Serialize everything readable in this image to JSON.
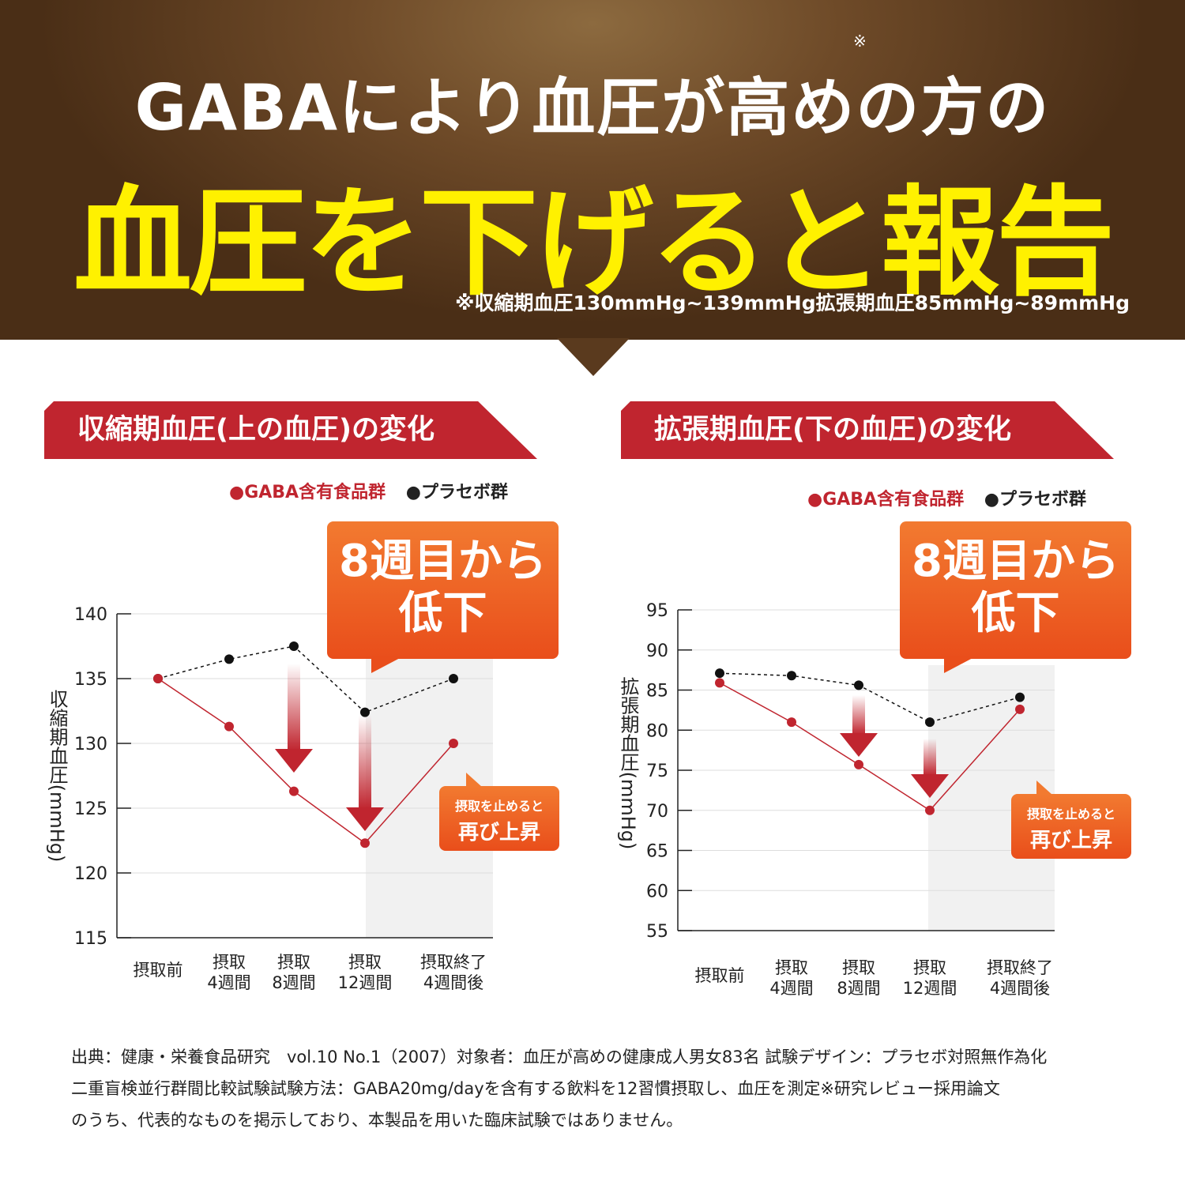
{
  "header": {
    "title_line1": "GABAにより血圧が高めの方の",
    "title_mark": "※",
    "title_line2": "血圧を下げると報告",
    "note": "※収縮期血圧130mmHg~139mmHg拡張期血圧85mmHg~89mmHg"
  },
  "legend": {
    "gaba": "●GABA含有食品群",
    "placebo": "●プラセボ群"
  },
  "badge": {
    "line1": "8週目から",
    "line2": "低下",
    "small_line1": "摂取を止めると",
    "small_line2": "再び上昇"
  },
  "colors": {
    "gaba": "#c0252f",
    "placebo": "#111111",
    "banner": "#c0252f",
    "accent": "#fff100"
  },
  "chart_data": [
    {
      "type": "line",
      "title": "収縮期血圧(上の血圧)の変化",
      "ylabel": "収縮期血圧(mmHg)",
      "ylim": [
        115,
        140
      ],
      "yticks": [
        "140",
        "135",
        "130",
        "125",
        "120",
        "115"
      ],
      "categories": [
        "摂取前",
        "摂取\n4週間",
        "摂取\n8週間",
        "摂取\n12週間",
        "摂取終了\n4週間後"
      ],
      "series": [
        {
          "name": "GABA含有食品群",
          "values": [
            135,
            131.3,
            126.3,
            122.3,
            130
          ]
        },
        {
          "name": "プラセボ群",
          "values": [
            135,
            136.5,
            137.5,
            132.4,
            135
          ]
        }
      ]
    },
    {
      "type": "line",
      "title": "拡張期血圧(下の血圧)の変化",
      "ylabel": "拡張期血圧(mmHg)",
      "ylim": [
        55,
        95
      ],
      "yticks": [
        "95",
        "90",
        "85",
        "80",
        "75",
        "70",
        "65",
        "60",
        "55"
      ],
      "categories": [
        "摂取前",
        "摂取\n4週間",
        "摂取\n8週間",
        "摂取\n12週間",
        "摂取終了\n4週間後"
      ],
      "series": [
        {
          "name": "GABA含有食品群",
          "values": [
            85.9,
            81,
            75.7,
            70,
            82.6
          ]
        },
        {
          "name": "プラセボ群",
          "values": [
            87.1,
            86.8,
            85.6,
            81,
            84.1
          ]
        }
      ]
    }
  ],
  "footer": {
    "line1": "出典：健康・栄養食品研究　vol.10 No.1（2007）対象者：血圧が高めの健康成人男女83名 試験デザイン：プラセボ対照無作為化",
    "line2": "二重盲検並行群間比較試験試験方法：GABA20mg/dayを含有する飲料を12習慣摂取し、血圧を測定※研究レビュー採用論文",
    "line3": "のうち、代表的なものを掲示しており、本製品を用いた臨床試験ではありません。"
  }
}
